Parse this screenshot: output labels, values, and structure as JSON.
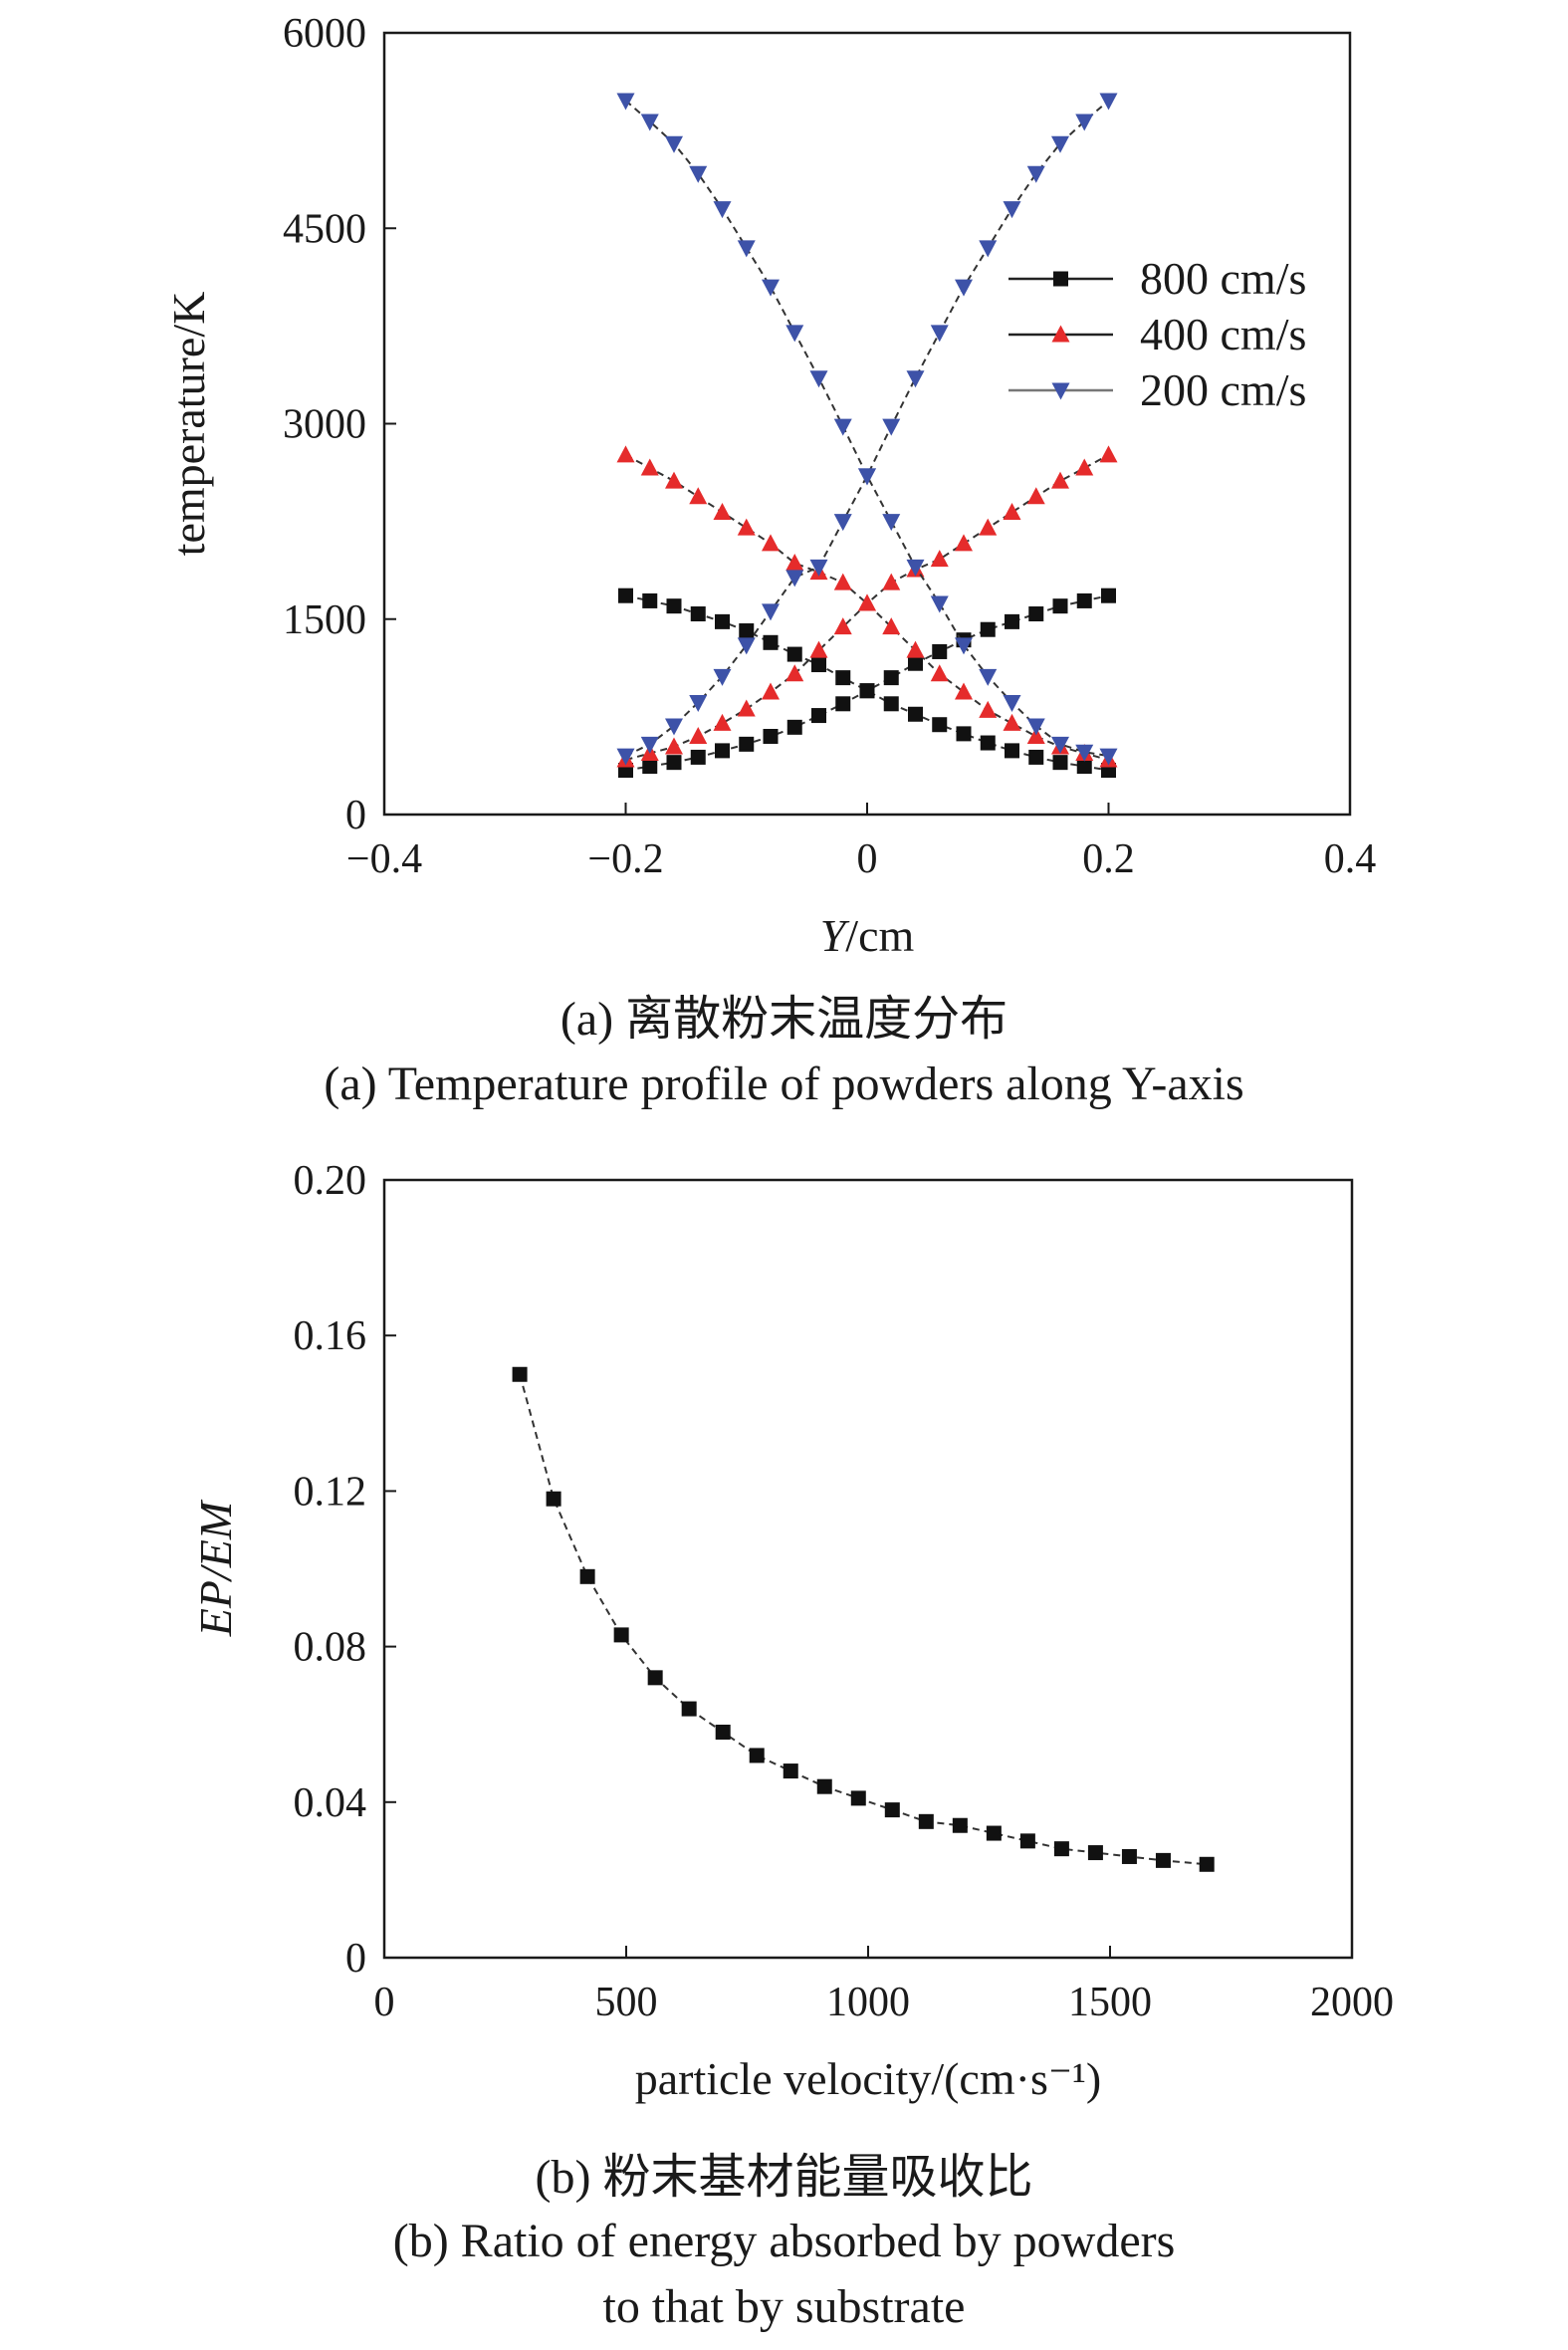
{
  "chart_data": [
    {
      "type": "line",
      "xlabel": "Y/cm",
      "ylabel": "temperature/K",
      "xlim": [
        -0.4,
        0.4
      ],
      "ylim": [
        0,
        6000
      ],
      "xticks": [
        "−0.4",
        "−0.2",
        "0",
        "0.2",
        "0.4"
      ],
      "yticks": [
        "0",
        "1500",
        "3000",
        "4500",
        "6000"
      ],
      "grid": false,
      "legend_position": "right",
      "caption_cn": "(a) 离散粉末温度分布",
      "caption_en": "(a) Temperature profile of powders along Y-axis",
      "series": [
        {
          "name": "800 cm/s",
          "marker": "square",
          "color": "#111111",
          "branches": [
            {
              "x": [
                -0.2,
                -0.18,
                -0.16,
                -0.14,
                -0.12,
                -0.1,
                -0.08,
                -0.06,
                -0.04,
                -0.02,
                0,
                0.02,
                0.04,
                0.06,
                0.08,
                0.1,
                0.12,
                0.14,
                0.16,
                0.18,
                0.2
              ],
              "y": [
                340,
                370,
                400,
                440,
                490,
                540,
                600,
                670,
                760,
                850,
                950,
                1050,
                1160,
                1250,
                1340,
                1420,
                1480,
                1540,
                1600,
                1640,
                1680
              ]
            },
            {
              "x": [
                -0.2,
                -0.18,
                -0.16,
                -0.14,
                -0.12,
                -0.1,
                -0.08,
                -0.06,
                -0.04,
                -0.02,
                0,
                0.02,
                0.04,
                0.06,
                0.08,
                0.1,
                0.12,
                0.14,
                0.16,
                0.18,
                0.2
              ],
              "y": [
                1680,
                1640,
                1600,
                1540,
                1480,
                1410,
                1320,
                1230,
                1150,
                1050,
                950,
                850,
                770,
                690,
                620,
                550,
                490,
                440,
                400,
                370,
                340
              ]
            }
          ]
        },
        {
          "name": "400 cm/s",
          "marker": "triangle-up",
          "color": "#e52b2b",
          "branches": [
            {
              "x": [
                -0.2,
                -0.18,
                -0.16,
                -0.14,
                -0.12,
                -0.1,
                -0.08,
                -0.06,
                -0.04,
                -0.02,
                0,
                0.02,
                0.04,
                0.06,
                0.08,
                0.1,
                0.12,
                0.14,
                0.16,
                0.18,
                0.2
              ],
              "y": [
                420,
                470,
                520,
                600,
                700,
                810,
                940,
                1080,
                1260,
                1440,
                1620,
                1780,
                1880,
                1960,
                2080,
                2200,
                2320,
                2440,
                2560,
                2660,
                2760
              ]
            },
            {
              "x": [
                -0.2,
                -0.18,
                -0.16,
                -0.14,
                -0.12,
                -0.1,
                -0.08,
                -0.06,
                -0.04,
                -0.02,
                0,
                0.02,
                0.04,
                0.06,
                0.08,
                0.1,
                0.12,
                0.14,
                0.16,
                0.18,
                0.2
              ],
              "y": [
                2760,
                2660,
                2560,
                2440,
                2320,
                2200,
                2080,
                1930,
                1860,
                1780,
                1620,
                1440,
                1260,
                1080,
                940,
                800,
                700,
                600,
                520,
                470,
                420
              ]
            }
          ]
        },
        {
          "name": "200 cm/s",
          "marker": "triangle-down",
          "color": "#3d52a8",
          "branches": [
            {
              "x": [
                -0.2,
                -0.18,
                -0.16,
                -0.14,
                -0.12,
                -0.1,
                -0.08,
                -0.06,
                -0.04,
                -0.02,
                0,
                0.02,
                0.04,
                0.06,
                0.08,
                0.1,
                0.12,
                0.14,
                0.16,
                0.18,
                0.2
              ],
              "y": [
                450,
                540,
                680,
                860,
                1060,
                1300,
                1560,
                1820,
                1900,
                2250,
                2600,
                2980,
                3350,
                3700,
                4050,
                4350,
                4650,
                4920,
                5150,
                5320,
                5480
              ]
            },
            {
              "x": [
                -0.2,
                -0.18,
                -0.16,
                -0.14,
                -0.12,
                -0.1,
                -0.08,
                -0.06,
                -0.04,
                -0.02,
                0,
                0.02,
                0.04,
                0.06,
                0.08,
                0.1,
                0.12,
                0.14,
                0.16,
                0.18,
                0.2
              ],
              "y": [
                5480,
                5320,
                5150,
                4920,
                4650,
                4350,
                4050,
                3700,
                3350,
                2980,
                2600,
                2250,
                1900,
                1620,
                1300,
                1060,
                860,
                680,
                540,
                480,
                450
              ]
            }
          ]
        }
      ]
    },
    {
      "type": "line",
      "xlabel": "particle velocity/(cm·s⁻¹)",
      "ylabel": "EP/EM",
      "xlim": [
        0,
        2000
      ],
      "ylim": [
        0,
        0.2
      ],
      "xticks": [
        "0",
        "500",
        "1000",
        "1500",
        "2000"
      ],
      "yticks": [
        "0",
        "0.04",
        "0.08",
        "0.12",
        "0.16",
        "0.20"
      ],
      "grid": false,
      "caption_cn": "(b) 粉末基材能量吸收比",
      "caption_en_1": "(b) Ratio of energy absorbed by powders",
      "caption_en_2": "to that by substrate",
      "series": [
        {
          "marker": "square",
          "color": "#111111",
          "x": [
            280,
            350,
            420,
            490,
            560,
            630,
            700,
            770,
            840,
            910,
            980,
            1050,
            1120,
            1190,
            1260,
            1330,
            1400,
            1470,
            1540,
            1610,
            1700
          ],
          "y": [
            0.15,
            0.118,
            0.098,
            0.083,
            0.072,
            0.064,
            0.058,
            0.052,
            0.048,
            0.044,
            0.041,
            0.038,
            0.035,
            0.034,
            0.032,
            0.03,
            0.028,
            0.027,
            0.026,
            0.025,
            0.024
          ]
        }
      ]
    }
  ]
}
